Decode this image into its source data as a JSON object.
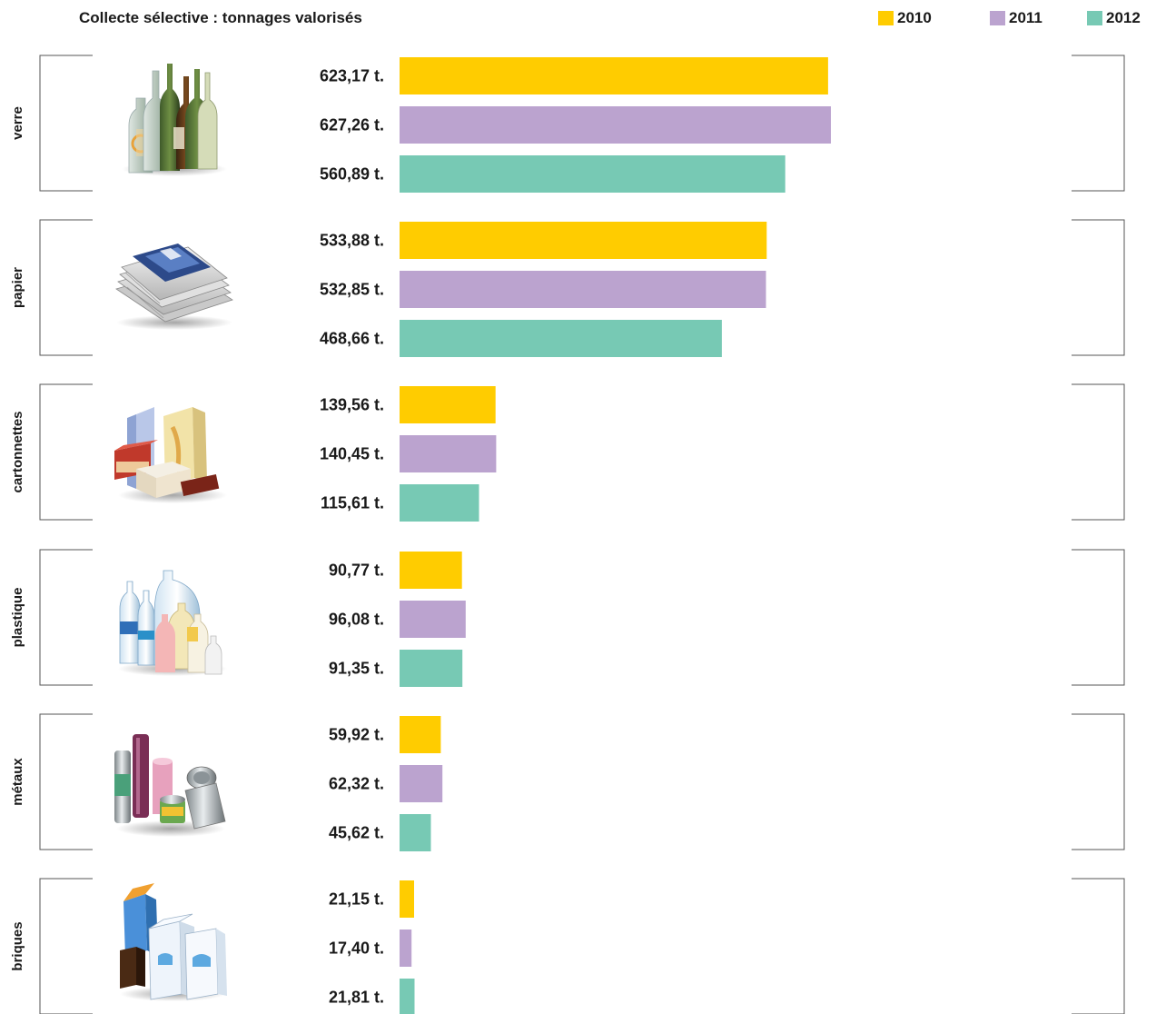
{
  "chart_data": {
    "type": "bar",
    "orientation": "horizontal",
    "title": "Collecte sélective : tonnages valorisés",
    "legend_position": "top-right",
    "grid": false,
    "xlim": [
      0,
      627.26
    ],
    "series_names": [
      "2010",
      "2011",
      "2012"
    ],
    "colors": [
      "#ffcc00",
      "#bba3cf",
      "#77c9b4"
    ],
    "groups": [
      {
        "name": "verre",
        "icon": "glass-bottles-icon",
        "values": [
          623.17,
          627.26,
          560.89
        ],
        "labels": [
          "623,17 t.",
          "627,26 t.",
          "560,89 t."
        ]
      },
      {
        "name": "papier",
        "icon": "paper-stack-icon",
        "values": [
          533.88,
          532.85,
          468.66
        ],
        "labels": [
          "533,88 t.",
          "532,85 t.",
          "468,66 t."
        ]
      },
      {
        "name": "cartonnettes",
        "icon": "cardboard-boxes-icon",
        "values": [
          139.56,
          140.45,
          115.61
        ],
        "labels": [
          "139,56 t.",
          "140,45 t.",
          "115,61 t."
        ]
      },
      {
        "name": "plastique",
        "icon": "plastic-bottles-icon",
        "values": [
          90.77,
          96.08,
          91.35
        ],
        "labels": [
          "90,77 t.",
          "96,08 t.",
          "91,35 t."
        ]
      },
      {
        "name": "métaux",
        "icon": "metal-cans-icon",
        "values": [
          59.92,
          62.32,
          45.62
        ],
        "labels": [
          "59,92 t.",
          "62,32 t.",
          "45,62 t."
        ]
      },
      {
        "name": "briques",
        "icon": "drink-cartons-icon",
        "values": [
          21.15,
          17.4,
          21.81
        ],
        "labels": [
          "21,15 t.",
          "17,40 t.",
          "21,81 t."
        ]
      }
    ]
  }
}
